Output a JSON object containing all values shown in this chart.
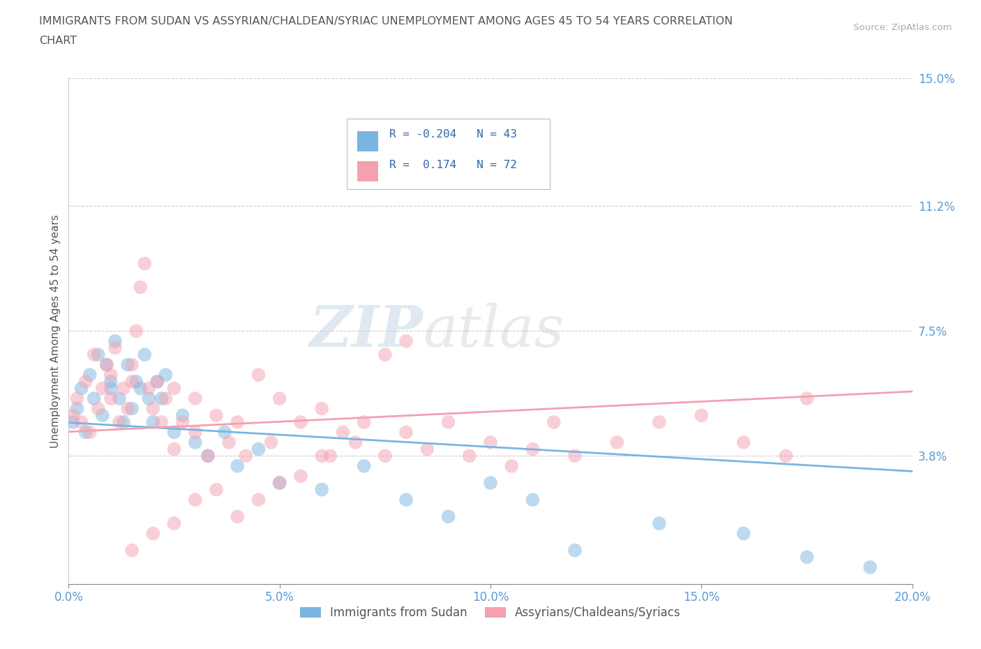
{
  "title_line1": "IMMIGRANTS FROM SUDAN VS ASSYRIAN/CHALDEAN/SYRIAC UNEMPLOYMENT AMONG AGES 45 TO 54 YEARS CORRELATION",
  "title_line2": "CHART",
  "source": "Source: ZipAtlas.com",
  "ylabel": "Unemployment Among Ages 45 to 54 years",
  "xlim": [
    0.0,
    0.2
  ],
  "ylim": [
    0.0,
    0.15
  ],
  "yticks": [
    0.0,
    0.038,
    0.075,
    0.112,
    0.15
  ],
  "ytick_labels": [
    "",
    "3.8%",
    "7.5%",
    "11.2%",
    "15.0%"
  ],
  "xticks": [
    0.0,
    0.05,
    0.1,
    0.15,
    0.2
  ],
  "xtick_labels": [
    "0.0%",
    "5.0%",
    "10.0%",
    "15.0%",
    "20.0%"
  ],
  "series1_color": "#7ab5e0",
  "series2_color": "#f4a0b0",
  "series1_label": "Immigrants from Sudan",
  "series2_label": "Assyrians/Chaldeans/Syriacs",
  "series1_R": -0.204,
  "series1_N": 43,
  "series2_R": 0.174,
  "series2_N": 72,
  "watermark_zip": "ZIP",
  "watermark_atlas": "atlas",
  "background_color": "#ffffff",
  "grid_color": "#cccccc",
  "tick_label_color": "#5b9bd5",
  "title_color": "#555555",
  "series1_x": [
    0.001,
    0.002,
    0.003,
    0.004,
    0.005,
    0.006,
    0.007,
    0.008,
    0.009,
    0.01,
    0.01,
    0.011,
    0.012,
    0.013,
    0.014,
    0.015,
    0.016,
    0.017,
    0.018,
    0.019,
    0.02,
    0.021,
    0.022,
    0.023,
    0.025,
    0.027,
    0.03,
    0.033,
    0.037,
    0.04,
    0.045,
    0.05,
    0.06,
    0.07,
    0.08,
    0.09,
    0.1,
    0.11,
    0.12,
    0.14,
    0.16,
    0.175,
    0.19
  ],
  "series1_y": [
    0.048,
    0.052,
    0.058,
    0.045,
    0.062,
    0.055,
    0.068,
    0.05,
    0.065,
    0.06,
    0.058,
    0.072,
    0.055,
    0.048,
    0.065,
    0.052,
    0.06,
    0.058,
    0.068,
    0.055,
    0.048,
    0.06,
    0.055,
    0.062,
    0.045,
    0.05,
    0.042,
    0.038,
    0.045,
    0.035,
    0.04,
    0.03,
    0.028,
    0.035,
    0.025,
    0.02,
    0.03,
    0.025,
    0.01,
    0.018,
    0.015,
    0.008,
    0.005
  ],
  "series2_x": [
    0.001,
    0.002,
    0.003,
    0.004,
    0.005,
    0.006,
    0.007,
    0.008,
    0.009,
    0.01,
    0.01,
    0.011,
    0.012,
    0.013,
    0.014,
    0.015,
    0.015,
    0.016,
    0.017,
    0.018,
    0.019,
    0.02,
    0.021,
    0.022,
    0.023,
    0.025,
    0.025,
    0.027,
    0.03,
    0.03,
    0.033,
    0.035,
    0.038,
    0.04,
    0.042,
    0.045,
    0.048,
    0.05,
    0.055,
    0.06,
    0.062,
    0.065,
    0.068,
    0.07,
    0.075,
    0.08,
    0.085,
    0.09,
    0.095,
    0.1,
    0.105,
    0.11,
    0.115,
    0.12,
    0.13,
    0.14,
    0.15,
    0.16,
    0.17,
    0.175,
    0.055,
    0.035,
    0.025,
    0.03,
    0.015,
    0.02,
    0.05,
    0.04,
    0.045,
    0.06,
    0.075,
    0.08
  ],
  "series2_y": [
    0.05,
    0.055,
    0.048,
    0.06,
    0.045,
    0.068,
    0.052,
    0.058,
    0.065,
    0.055,
    0.062,
    0.07,
    0.048,
    0.058,
    0.052,
    0.06,
    0.065,
    0.075,
    0.088,
    0.095,
    0.058,
    0.052,
    0.06,
    0.048,
    0.055,
    0.04,
    0.058,
    0.048,
    0.045,
    0.055,
    0.038,
    0.05,
    0.042,
    0.048,
    0.038,
    0.062,
    0.042,
    0.055,
    0.048,
    0.052,
    0.038,
    0.045,
    0.042,
    0.048,
    0.038,
    0.045,
    0.04,
    0.048,
    0.038,
    0.042,
    0.035,
    0.04,
    0.048,
    0.038,
    0.042,
    0.048,
    0.05,
    0.042,
    0.038,
    0.055,
    0.032,
    0.028,
    0.018,
    0.025,
    0.01,
    0.015,
    0.03,
    0.02,
    0.025,
    0.038,
    0.068,
    0.072
  ]
}
